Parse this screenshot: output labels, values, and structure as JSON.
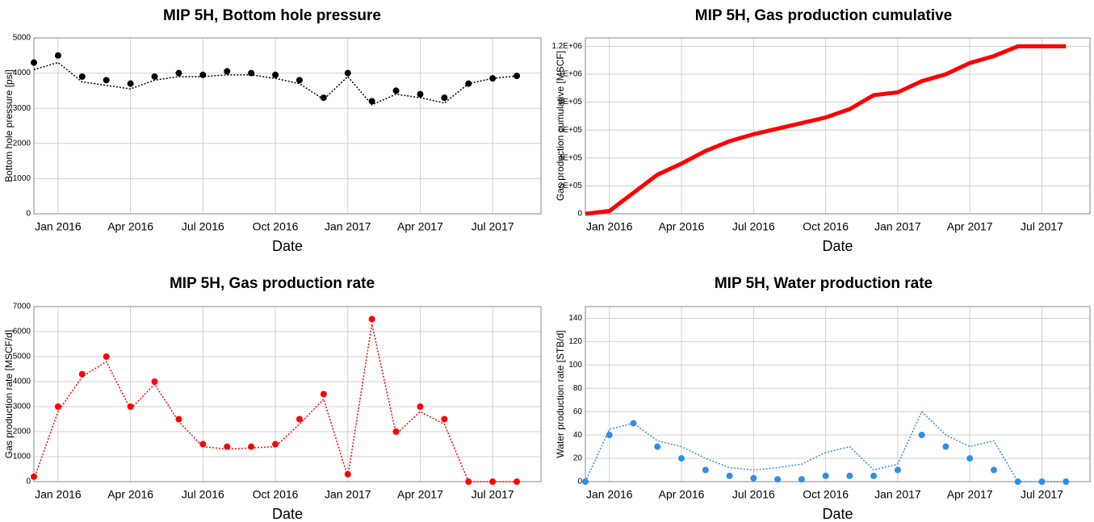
{
  "chart_data": [
    {
      "type": "line",
      "title": "MIP 5H, Bottom hole pressure",
      "xlabel": "Date",
      "ylabel": "Bottom hole pressure [psi]",
      "x": [
        "2015-12",
        "2016-01",
        "2016-02",
        "2016-03",
        "2016-04",
        "2016-05",
        "2016-06",
        "2016-07",
        "2016-08",
        "2016-09",
        "2016-10",
        "2016-11",
        "2016-12",
        "2017-01",
        "2017-02",
        "2017-03",
        "2017-04",
        "2017-05",
        "2017-06",
        "2017-07",
        "2017-08"
      ],
      "series": [
        {
          "color": "#000000",
          "style": "markers",
          "values": [
            4300,
            4500,
            3900,
            3800,
            3700,
            3900,
            4000,
            3950,
            4050,
            4000,
            3950,
            3800,
            3300,
            4000,
            3200,
            3500,
            3400,
            3300,
            3700,
            3850,
            3920
          ]
        },
        {
          "color": "#000000",
          "style": "dotted",
          "values": [
            4100,
            4300,
            3750,
            3650,
            3550,
            3800,
            3900,
            3900,
            3950,
            3950,
            3850,
            3700,
            3250,
            3900,
            3100,
            3400,
            3300,
            3150,
            3700,
            3850,
            3920
          ]
        }
      ],
      "xlim": [
        "2015-12",
        "2017-09"
      ],
      "xticks": [
        {
          "value": "2016-01",
          "label": "Jan 2016"
        },
        {
          "value": "2016-04",
          "label": "Apr 2016"
        },
        {
          "value": "2016-07",
          "label": "Jul 2016"
        },
        {
          "value": "2016-10",
          "label": "Oct 2016"
        },
        {
          "value": "2017-01",
          "label": "Jan 2017"
        },
        {
          "value": "2017-04",
          "label": "Apr 2017"
        },
        {
          "value": "2017-07",
          "label": "Jul 2017"
        }
      ],
      "ylim": [
        0,
        5000
      ],
      "yticks": [
        0,
        1000,
        2000,
        3000,
        4000,
        5000
      ],
      "grid": true
    },
    {
      "type": "line",
      "title": "MIP 5H, Gas production cumulative",
      "xlabel": "Date",
      "ylabel": "Gas production cumulative [MSCF]",
      "x": [
        "2015-12",
        "2016-01",
        "2016-02",
        "2016-03",
        "2016-04",
        "2016-05",
        "2016-06",
        "2016-07",
        "2016-08",
        "2016-09",
        "2016-10",
        "2016-11",
        "2016-12",
        "2017-01",
        "2017-02",
        "2017-03",
        "2017-04",
        "2017-05",
        "2017-06",
        "2017-07",
        "2017-08"
      ],
      "series": [
        {
          "color": "#ff0000",
          "style": "thick",
          "values": [
            0,
            20000,
            150000,
            280000,
            360000,
            450000,
            520000,
            570000,
            610000,
            650000,
            690000,
            750000,
            850000,
            870000,
            950000,
            1000000,
            1080000,
            1130000,
            1200000,
            1200000,
            1200000
          ]
        }
      ],
      "xlim": [
        "2015-12",
        "2017-09"
      ],
      "xticks": [
        {
          "value": "2016-01",
          "label": "Jan 2016"
        },
        {
          "value": "2016-04",
          "label": "Apr 2016"
        },
        {
          "value": "2016-07",
          "label": "Jul 2016"
        },
        {
          "value": "2016-10",
          "label": "Oct 2016"
        },
        {
          "value": "2017-01",
          "label": "Jan 2017"
        },
        {
          "value": "2017-04",
          "label": "Apr 2017"
        },
        {
          "value": "2017-07",
          "label": "Jul 2017"
        }
      ],
      "ylim": [
        0,
        1260000
      ],
      "yticks": [
        0,
        {
          "value": 200000,
          "label": "2E+05"
        },
        {
          "value": 400000,
          "label": "4E+05"
        },
        {
          "value": 600000,
          "label": "6E+05"
        },
        {
          "value": 800000,
          "label": "8E+05"
        },
        {
          "value": 1000000,
          "label": "1E+06"
        },
        {
          "value": 1200000,
          "label": "1.2E+06"
        }
      ],
      "grid": true
    },
    {
      "type": "line",
      "title": "MIP 5H, Gas production rate",
      "xlabel": "Date",
      "ylabel": "Gas production rate [MSCF/d]",
      "x": [
        "2015-12",
        "2016-01",
        "2016-02",
        "2016-03",
        "2016-04",
        "2016-05",
        "2016-06",
        "2016-07",
        "2016-08",
        "2016-09",
        "2016-10",
        "2016-11",
        "2016-12",
        "2017-01",
        "2017-02",
        "2017-03",
        "2017-04",
        "2017-05",
        "2017-06",
        "2017-07",
        "2017-08"
      ],
      "series": [
        {
          "color": "#ff0000",
          "style": "markers",
          "values": [
            200,
            3000,
            4300,
            5000,
            3000,
            4000,
            2500,
            1500,
            1400,
            1400,
            1500,
            2500,
            3500,
            300,
            6500,
            2000,
            3000,
            2500,
            0,
            0,
            0
          ]
        },
        {
          "color": "#ff0000",
          "style": "dotted",
          "values": [
            100,
            2800,
            4200,
            4800,
            2900,
            3900,
            2400,
            1400,
            1300,
            1350,
            1400,
            2300,
            3300,
            200,
            6300,
            1900,
            2800,
            2300,
            0,
            0,
            0
          ]
        }
      ],
      "xlim": [
        "2015-12",
        "2017-09"
      ],
      "xticks": [
        {
          "value": "2016-01",
          "label": "Jan 2016"
        },
        {
          "value": "2016-04",
          "label": "Apr 2016"
        },
        {
          "value": "2016-07",
          "label": "Jul 2016"
        },
        {
          "value": "2016-10",
          "label": "Oct 2016"
        },
        {
          "value": "2017-01",
          "label": "Jan 2017"
        },
        {
          "value": "2017-04",
          "label": "Apr 2017"
        },
        {
          "value": "2017-07",
          "label": "Jul 2017"
        }
      ],
      "ylim": [
        0,
        7000
      ],
      "yticks": [
        0,
        1000,
        2000,
        3000,
        4000,
        5000,
        6000,
        7000
      ],
      "grid": true
    },
    {
      "type": "line",
      "title": "MIP 5H, Water production rate",
      "xlabel": "Date",
      "ylabel": "Water production rate [STB/d]",
      "x": [
        "2015-12",
        "2016-01",
        "2016-02",
        "2016-03",
        "2016-04",
        "2016-05",
        "2016-06",
        "2016-07",
        "2016-08",
        "2016-09",
        "2016-10",
        "2016-11",
        "2016-12",
        "2017-01",
        "2017-02",
        "2017-03",
        "2017-04",
        "2017-05",
        "2017-06",
        "2017-07",
        "2017-08"
      ],
      "series": [
        {
          "color": "#2e8fe6",
          "style": "markers",
          "values": [
            0,
            40,
            50,
            30,
            20,
            10,
            5,
            3,
            2,
            2,
            5,
            5,
            5,
            10,
            40,
            30,
            20,
            10,
            0,
            0,
            0
          ]
        },
        {
          "color": "#2e8fe6",
          "style": "dotted",
          "values": [
            0,
            45,
            50,
            35,
            30,
            20,
            12,
            10,
            12,
            15,
            25,
            30,
            10,
            15,
            60,
            40,
            30,
            35,
            0,
            0,
            0
          ]
        }
      ],
      "xlim": [
        "2015-12",
        "2017-09"
      ],
      "xticks": [
        {
          "value": "2016-01",
          "label": "Jan 2016"
        },
        {
          "value": "2016-04",
          "label": "Apr 2016"
        },
        {
          "value": "2016-07",
          "label": "Jul 2016"
        },
        {
          "value": "2016-10",
          "label": "Oct 2016"
        },
        {
          "value": "2017-01",
          "label": "Jan 2017"
        },
        {
          "value": "2017-04",
          "label": "Apr 2017"
        },
        {
          "value": "2017-07",
          "label": "Jul 2017"
        }
      ],
      "ylim": [
        0,
        150
      ],
      "yticks": [
        0,
        20,
        40,
        60,
        80,
        100,
        120,
        140
      ],
      "grid": true
    }
  ]
}
